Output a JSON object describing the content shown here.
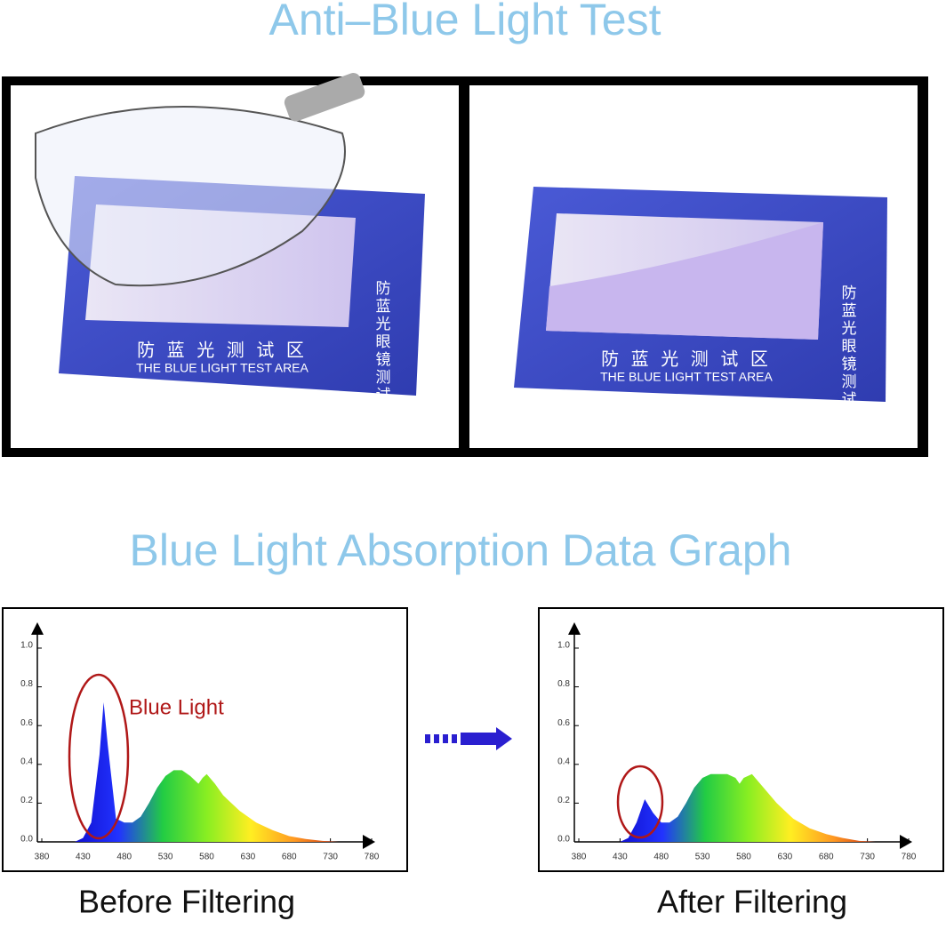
{
  "title": "Anti–Blue Light Test",
  "photos": {
    "cards": [
      {
        "vertical_text": "防蓝光眼镜测试",
        "area_cn": "防 蓝 光 测 试 区",
        "area_en": "THE BLUE LIGHT TEST AREA"
      },
      {
        "vertical_text": "防蓝光眼镜测试",
        "area_cn": "防 蓝 光 测 试 区",
        "area_en": "THE BLUE LIGHT TEST AREA"
      }
    ]
  },
  "graph_title": "Blue Light Absorption Data Graph",
  "chart_data": [
    {
      "type": "area",
      "caption": "Before Filtering",
      "annotation": "Blue Light",
      "x": [
        420,
        430,
        440,
        450,
        455,
        460,
        470,
        480,
        490,
        500,
        510,
        520,
        530,
        540,
        550,
        560,
        570,
        575,
        580,
        590,
        600,
        620,
        640,
        660,
        680,
        700,
        720,
        740
      ],
      "values": [
        0,
        0.02,
        0.1,
        0.45,
        0.72,
        0.5,
        0.12,
        0.1,
        0.1,
        0.13,
        0.2,
        0.28,
        0.34,
        0.37,
        0.37,
        0.34,
        0.3,
        0.33,
        0.35,
        0.3,
        0.24,
        0.16,
        0.1,
        0.06,
        0.03,
        0.015,
        0.005,
        0
      ],
      "xlim": [
        380,
        780
      ],
      "ylim": [
        0,
        1
      ],
      "xticks": [
        380,
        430,
        480,
        530,
        580,
        630,
        680,
        730,
        780
      ],
      "yticks": [
        {
          "value": 0,
          "label": "0.0"
        },
        0.2,
        0.4,
        0.6,
        0.8,
        {
          "value": 1,
          "label": "1.0"
        }
      ],
      "colors": [
        "#1010d0",
        "#2233ff",
        "#22cc44",
        "#88ee22",
        "#ffee22",
        "#ff9922",
        "#cc3311"
      ]
    },
    {
      "type": "area",
      "caption": "After Filtering",
      "x": [
        430,
        440,
        450,
        460,
        470,
        480,
        490,
        500,
        510,
        520,
        530,
        540,
        560,
        570,
        575,
        580,
        590,
        600,
        620,
        640,
        660,
        680,
        700,
        720,
        740
      ],
      "values": [
        0,
        0.02,
        0.1,
        0.22,
        0.15,
        0.1,
        0.1,
        0.13,
        0.2,
        0.28,
        0.33,
        0.35,
        0.35,
        0.33,
        0.3,
        0.33,
        0.35,
        0.3,
        0.2,
        0.12,
        0.07,
        0.04,
        0.02,
        0.005,
        0
      ],
      "xlim": [
        380,
        780
      ],
      "ylim": [
        0,
        1
      ],
      "xticks": [
        380,
        430,
        480,
        530,
        580,
        630,
        680,
        730,
        780
      ],
      "yticks": [
        {
          "value": 0,
          "label": "0.0"
        },
        0.2,
        0.4,
        0.6,
        0.8,
        {
          "value": 1,
          "label": "1.0"
        }
      ],
      "colors": [
        "#1010d0",
        "#2233ff",
        "#22cc44",
        "#88ee22",
        "#ffee22",
        "#ff9922",
        "#cc3311"
      ]
    }
  ]
}
